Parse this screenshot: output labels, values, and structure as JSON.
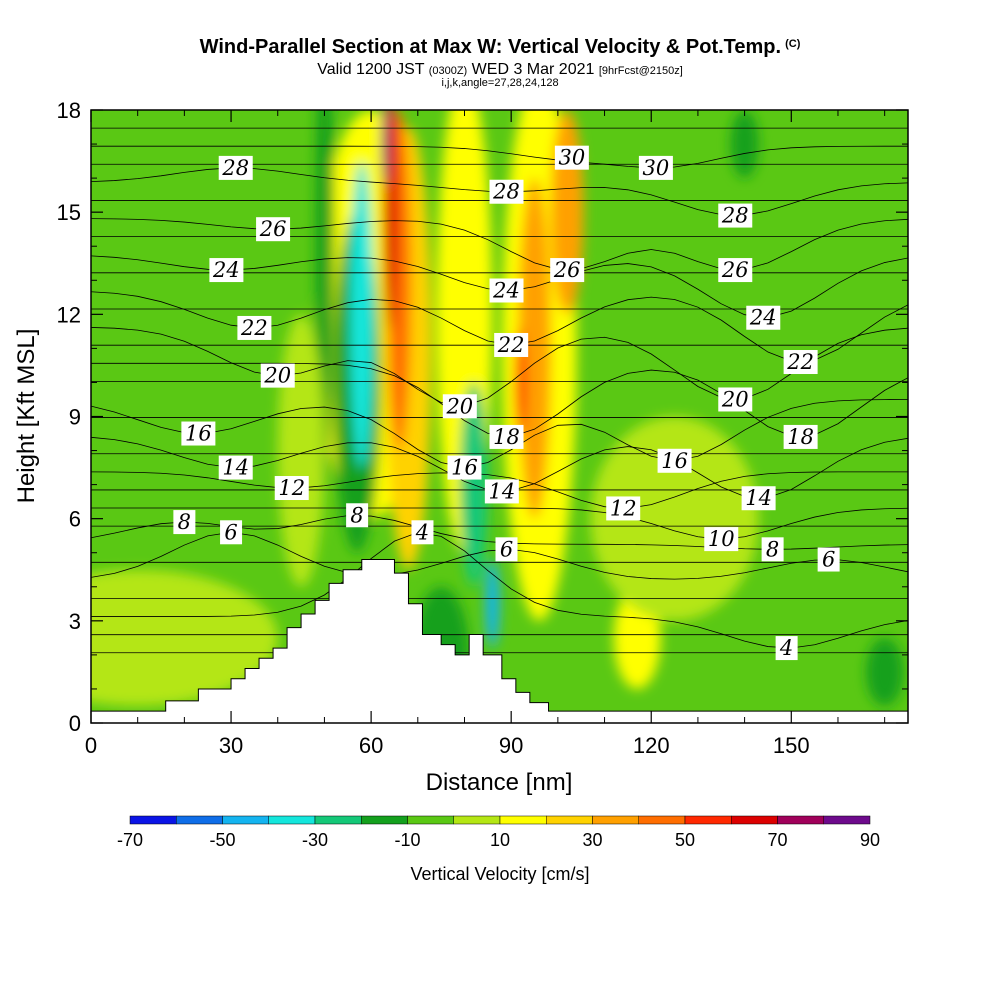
{
  "header": {
    "title": "Wind-Parallel Section at Max W: Vertical Velocity & Pot.Temp.",
    "title_units": "(C)",
    "valid_prefix": "Valid 1200 JST",
    "valid_utc": "(0300Z)",
    "valid_date": "WED 3 Mar 2021",
    "forecast_info": "[9hrFcst@2150z]",
    "grid_info": "i,j,k,angle=27,28,24,128"
  },
  "chart_data": {
    "type": "heatmap",
    "xlabel": "Distance [nm]",
    "ylabel": "Height [Kft MSL]",
    "xlim": [
      0,
      175
    ],
    "ylim": [
      0,
      18
    ],
    "x_ticks": [
      "0",
      "30",
      "60",
      "90",
      "120",
      "150"
    ],
    "y_ticks": [
      "0",
      "3",
      "6",
      "9",
      "12",
      "15",
      "18"
    ],
    "colorbar": {
      "title": "Vertical Velocity [cm/s]",
      "levels": [
        -70,
        -60,
        -50,
        -40,
        -30,
        -20,
        -10,
        0,
        10,
        20,
        30,
        40,
        50,
        60,
        70,
        80,
        90
      ],
      "tick_labels": [
        "-70",
        "-50",
        "-30",
        "-10",
        "10",
        "30",
        "50",
        "70",
        "90"
      ],
      "colors": [
        "#0a14e6",
        "#0f6ee8",
        "#14b4f0",
        "#14e6dc",
        "#14c878",
        "#14a01e",
        "#5ac814",
        "#b4e614",
        "#ffff00",
        "#ffd200",
        "#ffa000",
        "#ff6e00",
        "#ff2800",
        "#dc0000",
        "#a0005a",
        "#6e0a8c"
      ]
    },
    "terrain_profile": {
      "x": [
        0,
        16,
        16,
        23,
        23,
        30,
        30,
        33,
        33,
        36,
        36,
        39,
        39,
        42,
        42,
        45,
        45,
        48,
        48,
        51,
        51,
        54,
        54,
        58,
        58,
        65,
        65,
        68,
        68,
        71,
        71,
        75,
        75,
        78,
        78,
        81,
        81,
        84,
        84,
        88,
        88,
        91,
        91,
        94,
        94,
        98,
        98,
        175
      ],
      "y": [
        0.35,
        0.35,
        0.65,
        0.65,
        1.0,
        1.0,
        1.3,
        1.3,
        1.6,
        1.6,
        1.9,
        1.9,
        2.2,
        2.2,
        2.8,
        2.8,
        3.2,
        3.2,
        3.6,
        3.6,
        4.1,
        4.1,
        4.5,
        4.5,
        4.8,
        4.8,
        4.4,
        4.4,
        3.5,
        3.5,
        2.6,
        2.6,
        2.3,
        2.3,
        2.0,
        2.0,
        2.6,
        2.6,
        2.0,
        2.0,
        1.3,
        1.3,
        0.9,
        0.9,
        0.6,
        0.6,
        0.35,
        0.35
      ]
    },
    "w_features": [
      {
        "x": 60,
        "y": 12,
        "w_cms": 10,
        "rx": 12,
        "ry": 6
      },
      {
        "x": 57,
        "y": 10,
        "w_cms": -20,
        "rx": 5,
        "ry": 5
      },
      {
        "x": 58,
        "y": 12,
        "w_cms": -35,
        "rx": 2.5,
        "ry": 4.5
      },
      {
        "x": 68,
        "y": 11,
        "w_cms": 20,
        "rx": 5,
        "ry": 6.5
      },
      {
        "x": 66,
        "y": 13,
        "w_cms": 45,
        "rx": 2.5,
        "ry": 5
      },
      {
        "x": 64,
        "y": 15,
        "w_cms": 65,
        "rx": 1.5,
        "ry": 3.5
      },
      {
        "x": 63,
        "y": 17,
        "w_cms": 85,
        "rx": 0.7,
        "ry": 1.2
      },
      {
        "x": 80,
        "y": 12,
        "w_cms": 10,
        "rx": 6,
        "ry": 7
      },
      {
        "x": 82,
        "y": 7,
        "w_cms": -25,
        "rx": 3,
        "ry": 3
      },
      {
        "x": 86,
        "y": 3.5,
        "w_cms": -45,
        "rx": 1.5,
        "ry": 1.3
      },
      {
        "x": 96,
        "y": 11,
        "w_cms": 10,
        "rx": 8,
        "ry": 8
      },
      {
        "x": 95,
        "y": 11,
        "w_cms": 35,
        "rx": 3.5,
        "ry": 5
      },
      {
        "x": 102,
        "y": 15,
        "w_cms": 35,
        "rx": 3.5,
        "ry": 3
      },
      {
        "x": 92,
        "y": 10,
        "w_cms": 50,
        "rx": 1.2,
        "ry": 1.6
      },
      {
        "x": 117,
        "y": 2.5,
        "w_cms": 12,
        "rx": 5,
        "ry": 1.5
      },
      {
        "x": 10,
        "y": 2.5,
        "w_cms": 5,
        "rx": 30,
        "ry": 2
      },
      {
        "x": 125,
        "y": 6,
        "w_cms": 5,
        "rx": 18,
        "ry": 3
      },
      {
        "x": 50,
        "y": 14,
        "w_cms": -20,
        "rx": 2,
        "ry": 7
      },
      {
        "x": 75,
        "y": 2,
        "w_cms": -15,
        "rx": 6,
        "ry": 2
      },
      {
        "x": 140,
        "y": 17,
        "w_cms": -20,
        "rx": 3,
        "ry": 1
      },
      {
        "x": 170,
        "y": 1.5,
        "w_cms": -20,
        "rx": 4,
        "ry": 1
      },
      {
        "x": 45,
        "y": 8,
        "w_cms": 5,
        "rx": 5,
        "ry": 4
      }
    ],
    "theta_contour_labels": [
      {
        "value": "28",
        "x": 31,
        "y": 16.3
      },
      {
        "value": "26",
        "x": 39,
        "y": 14.5
      },
      {
        "value": "24",
        "x": 29,
        "y": 13.3
      },
      {
        "value": "22",
        "x": 35,
        "y": 11.6
      },
      {
        "value": "20",
        "x": 40,
        "y": 10.2
      },
      {
        "value": "16",
        "x": 23,
        "y": 8.5
      },
      {
        "value": "14",
        "x": 31,
        "y": 7.5
      },
      {
        "value": "12",
        "x": 43,
        "y": 6.9
      },
      {
        "value": "8",
        "x": 20,
        "y": 5.9
      },
      {
        "value": "6",
        "x": 30,
        "y": 5.6
      },
      {
        "value": "8",
        "x": 57,
        "y": 6.1
      },
      {
        "value": "4",
        "x": 71,
        "y": 5.6
      },
      {
        "value": "28",
        "x": 89,
        "y": 15.6
      },
      {
        "value": "30",
        "x": 103,
        "y": 16.6
      },
      {
        "value": "24",
        "x": 89,
        "y": 12.7
      },
      {
        "value": "26",
        "x": 102,
        "y": 13.3
      },
      {
        "value": "22",
        "x": 90,
        "y": 11.1
      },
      {
        "value": "20",
        "x": 79,
        "y": 9.3
      },
      {
        "value": "18",
        "x": 89,
        "y": 8.4
      },
      {
        "value": "16",
        "x": 80,
        "y": 7.5
      },
      {
        "value": "14",
        "x": 88,
        "y": 6.8
      },
      {
        "value": "6",
        "x": 89,
        "y": 5.1
      },
      {
        "value": "12",
        "x": 114,
        "y": 6.3
      },
      {
        "value": "30",
        "x": 121,
        "y": 16.3
      },
      {
        "value": "28",
        "x": 138,
        "y": 14.9
      },
      {
        "value": "26",
        "x": 138,
        "y": 13.3
      },
      {
        "value": "24",
        "x": 144,
        "y": 11.9
      },
      {
        "value": "22",
        "x": 152,
        "y": 10.6
      },
      {
        "value": "20",
        "x": 138,
        "y": 9.5
      },
      {
        "value": "18",
        "x": 152,
        "y": 8.4
      },
      {
        "value": "16",
        "x": 125,
        "y": 7.7
      },
      {
        "value": "14",
        "x": 143,
        "y": 6.6
      },
      {
        "value": "10",
        "x": 135,
        "y": 5.4
      },
      {
        "value": "8",
        "x": 146,
        "y": 5.1
      },
      {
        "value": "6",
        "x": 158,
        "y": 4.8
      },
      {
        "value": "4",
        "x": 149,
        "y": 2.2
      }
    ]
  }
}
